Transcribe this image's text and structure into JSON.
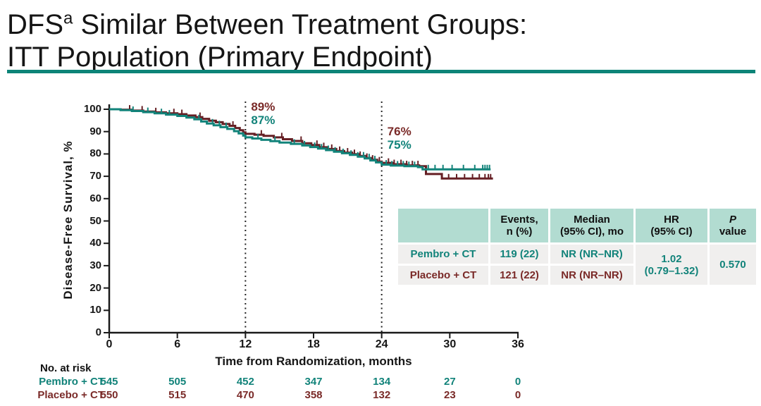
{
  "title": {
    "line1_prefix": "DFS",
    "line1_sup": "a",
    "line1_rest": " Similar Between Treatment Groups:",
    "line2": "ITT Population (Primary Endpoint)"
  },
  "colors": {
    "teal": "#12837A",
    "maroon": "#661F24",
    "maroon_text": "#7A2A28",
    "rule": "#0D8478",
    "header_bg": "#B2DCD1",
    "cell_bg": "#F0EFEE",
    "axis": "#1A1A1A"
  },
  "chart_data": {
    "type": "line",
    "subtype": "kaplan-meier-step",
    "xlabel": "Time from Randomization, months",
    "ylabel": "Disease-Free  Survival, %",
    "xlim": [
      0,
      36
    ],
    "ylim": [
      0,
      100
    ],
    "xticks": [
      0,
      6,
      12,
      18,
      24,
      30,
      36
    ],
    "ytick_step": 10,
    "grid": false,
    "series": [
      {
        "name": "Placebo + CT",
        "color_key": "maroon",
        "steps": [
          [
            0,
            100
          ],
          [
            1,
            99.8
          ],
          [
            2,
            99.4
          ],
          [
            3,
            99
          ],
          [
            4,
            98.6
          ],
          [
            5,
            98.2
          ],
          [
            6,
            97.8
          ],
          [
            6.8,
            97.2
          ],
          [
            7.6,
            96.5
          ],
          [
            8.2,
            95.7
          ],
          [
            8.8,
            94.9
          ],
          [
            9.4,
            94.2
          ],
          [
            10,
            93.4
          ],
          [
            10.6,
            92.6
          ],
          [
            11.1,
            91.6
          ],
          [
            11.5,
            90.6
          ],
          [
            11.8,
            89.7
          ],
          [
            12,
            89
          ],
          [
            12.8,
            88.6
          ],
          [
            13.6,
            88.1
          ],
          [
            14.5,
            87.4
          ],
          [
            15.3,
            86.6
          ],
          [
            16.1,
            85.8
          ],
          [
            17,
            84.8
          ],
          [
            17.8,
            84
          ],
          [
            18.5,
            83
          ],
          [
            19.2,
            82.2
          ],
          [
            20,
            81.3
          ],
          [
            20.7,
            80.6
          ],
          [
            21.4,
            79.9
          ],
          [
            22,
            79.1
          ],
          [
            22.6,
            78.2
          ],
          [
            23.1,
            77.4
          ],
          [
            23.6,
            76.6
          ],
          [
            24,
            76
          ],
          [
            25,
            75.4
          ],
          [
            26.2,
            74.9
          ],
          [
            27.3,
            74.5
          ],
          [
            27.9,
            71
          ],
          [
            29.3,
            69
          ],
          [
            33.8,
            69
          ]
        ],
        "censor_months": [
          1.8,
          2.9,
          4.1,
          5.7,
          6.4,
          8.0,
          10.9,
          13.4,
          15.2,
          16.9,
          18.3,
          18.9,
          19.6,
          20.3,
          21.0,
          21.6,
          22.1,
          22.7,
          23.2,
          23.8,
          24.6,
          25.1,
          25.7,
          26.2,
          26.7,
          27.2,
          29.9,
          30.6,
          31.3,
          32.0,
          32.6,
          33.1,
          33.4,
          33.6
        ]
      },
      {
        "name": "Pembro + CT",
        "color_key": "teal",
        "steps": [
          [
            0,
            100
          ],
          [
            1,
            99.6
          ],
          [
            2,
            99.2
          ],
          [
            3,
            98.7
          ],
          [
            4,
            98.2
          ],
          [
            5,
            97.6
          ],
          [
            6,
            97
          ],
          [
            6.8,
            96.3
          ],
          [
            7.5,
            95.5
          ],
          [
            8.1,
            94.5
          ],
          [
            8.6,
            93.6
          ],
          [
            9.2,
            92.8
          ],
          [
            9.8,
            92
          ],
          [
            10.4,
            91.2
          ],
          [
            11,
            90.2
          ],
          [
            11.4,
            89.2
          ],
          [
            11.8,
            88.2
          ],
          [
            12,
            87.4
          ],
          [
            12.6,
            86.9
          ],
          [
            13.4,
            86.3
          ],
          [
            14.2,
            85.7
          ],
          [
            15,
            85.1
          ],
          [
            16,
            84.5
          ],
          [
            17,
            83.8
          ],
          [
            17.7,
            83.1
          ],
          [
            18.4,
            82.4
          ],
          [
            19.1,
            81.7
          ],
          [
            19.8,
            81
          ],
          [
            20.5,
            80.3
          ],
          [
            21.2,
            79.6
          ],
          [
            21.9,
            78.8
          ],
          [
            22.5,
            78
          ],
          [
            23,
            77.1
          ],
          [
            23.5,
            76.2
          ],
          [
            24,
            75.2
          ],
          [
            24.8,
            74.8
          ],
          [
            26,
            74.5
          ],
          [
            27.2,
            74.1
          ],
          [
            27.6,
            73.1
          ],
          [
            33.6,
            73.1
          ]
        ],
        "censor_months": [
          2.1,
          3.4,
          4.6,
          5.3,
          7.9,
          9.1,
          9.7,
          10.3,
          13.1,
          14.6,
          16.3,
          17.2,
          18.1,
          18.7,
          19.3,
          19.9,
          20.6,
          21.3,
          21.9,
          22.4,
          22.9,
          23.4,
          24.4,
          24.9,
          25.4,
          25.9,
          26.4,
          26.9,
          28.1,
          28.7,
          29.4,
          30.2,
          31.2,
          32.2,
          32.9,
          33.1,
          33.3,
          33.5
        ]
      }
    ],
    "reference_lines_months": [
      12,
      24
    ],
    "landmarks": [
      {
        "month": 12,
        "labels": [
          {
            "text": "89%",
            "color_key": "maroon_text"
          },
          {
            "text": "87%",
            "color_key": "teal"
          }
        ]
      },
      {
        "month": 24,
        "labels": [
          {
            "text": "76%",
            "color_key": "maroon_text"
          },
          {
            "text": "75%",
            "color_key": "teal"
          }
        ]
      }
    ]
  },
  "stats_table": {
    "headers": [
      {
        "lines": [
          "",
          ""
        ]
      },
      {
        "lines": [
          "Events,",
          "n (%)"
        ]
      },
      {
        "lines": [
          "Median",
          "(95% CI), mo"
        ]
      },
      {
        "lines": [
          "HR",
          "(95% CI)"
        ]
      },
      {
        "lines": [
          "P",
          "value"
        ],
        "first_line_italic": true
      }
    ],
    "rows": [
      {
        "label": "Pembro + CT",
        "events": "119 (22)",
        "median": "NR (NR–NR)",
        "color_key": "teal"
      },
      {
        "label": "Placebo + CT",
        "events": "121 (22)",
        "median": "NR (NR–NR)",
        "color_key": "maroon_text"
      }
    ],
    "hr_lines": [
      "1.02",
      "(0.79–1.32)"
    ],
    "p_value": "0.570"
  },
  "risk_table": {
    "caption": "No. at risk",
    "months": [
      0,
      6,
      12,
      18,
      24,
      30,
      36
    ],
    "groups": [
      {
        "label": "Pembro + CT",
        "color_key": "teal",
        "counts": [
          "545",
          "505",
          "452",
          "347",
          "134",
          "27",
          "0"
        ]
      },
      {
        "label": "Placebo + CT",
        "color_key": "maroon_text",
        "counts": [
          "550",
          "515",
          "470",
          "358",
          "132",
          "23",
          "0"
        ]
      }
    ]
  }
}
